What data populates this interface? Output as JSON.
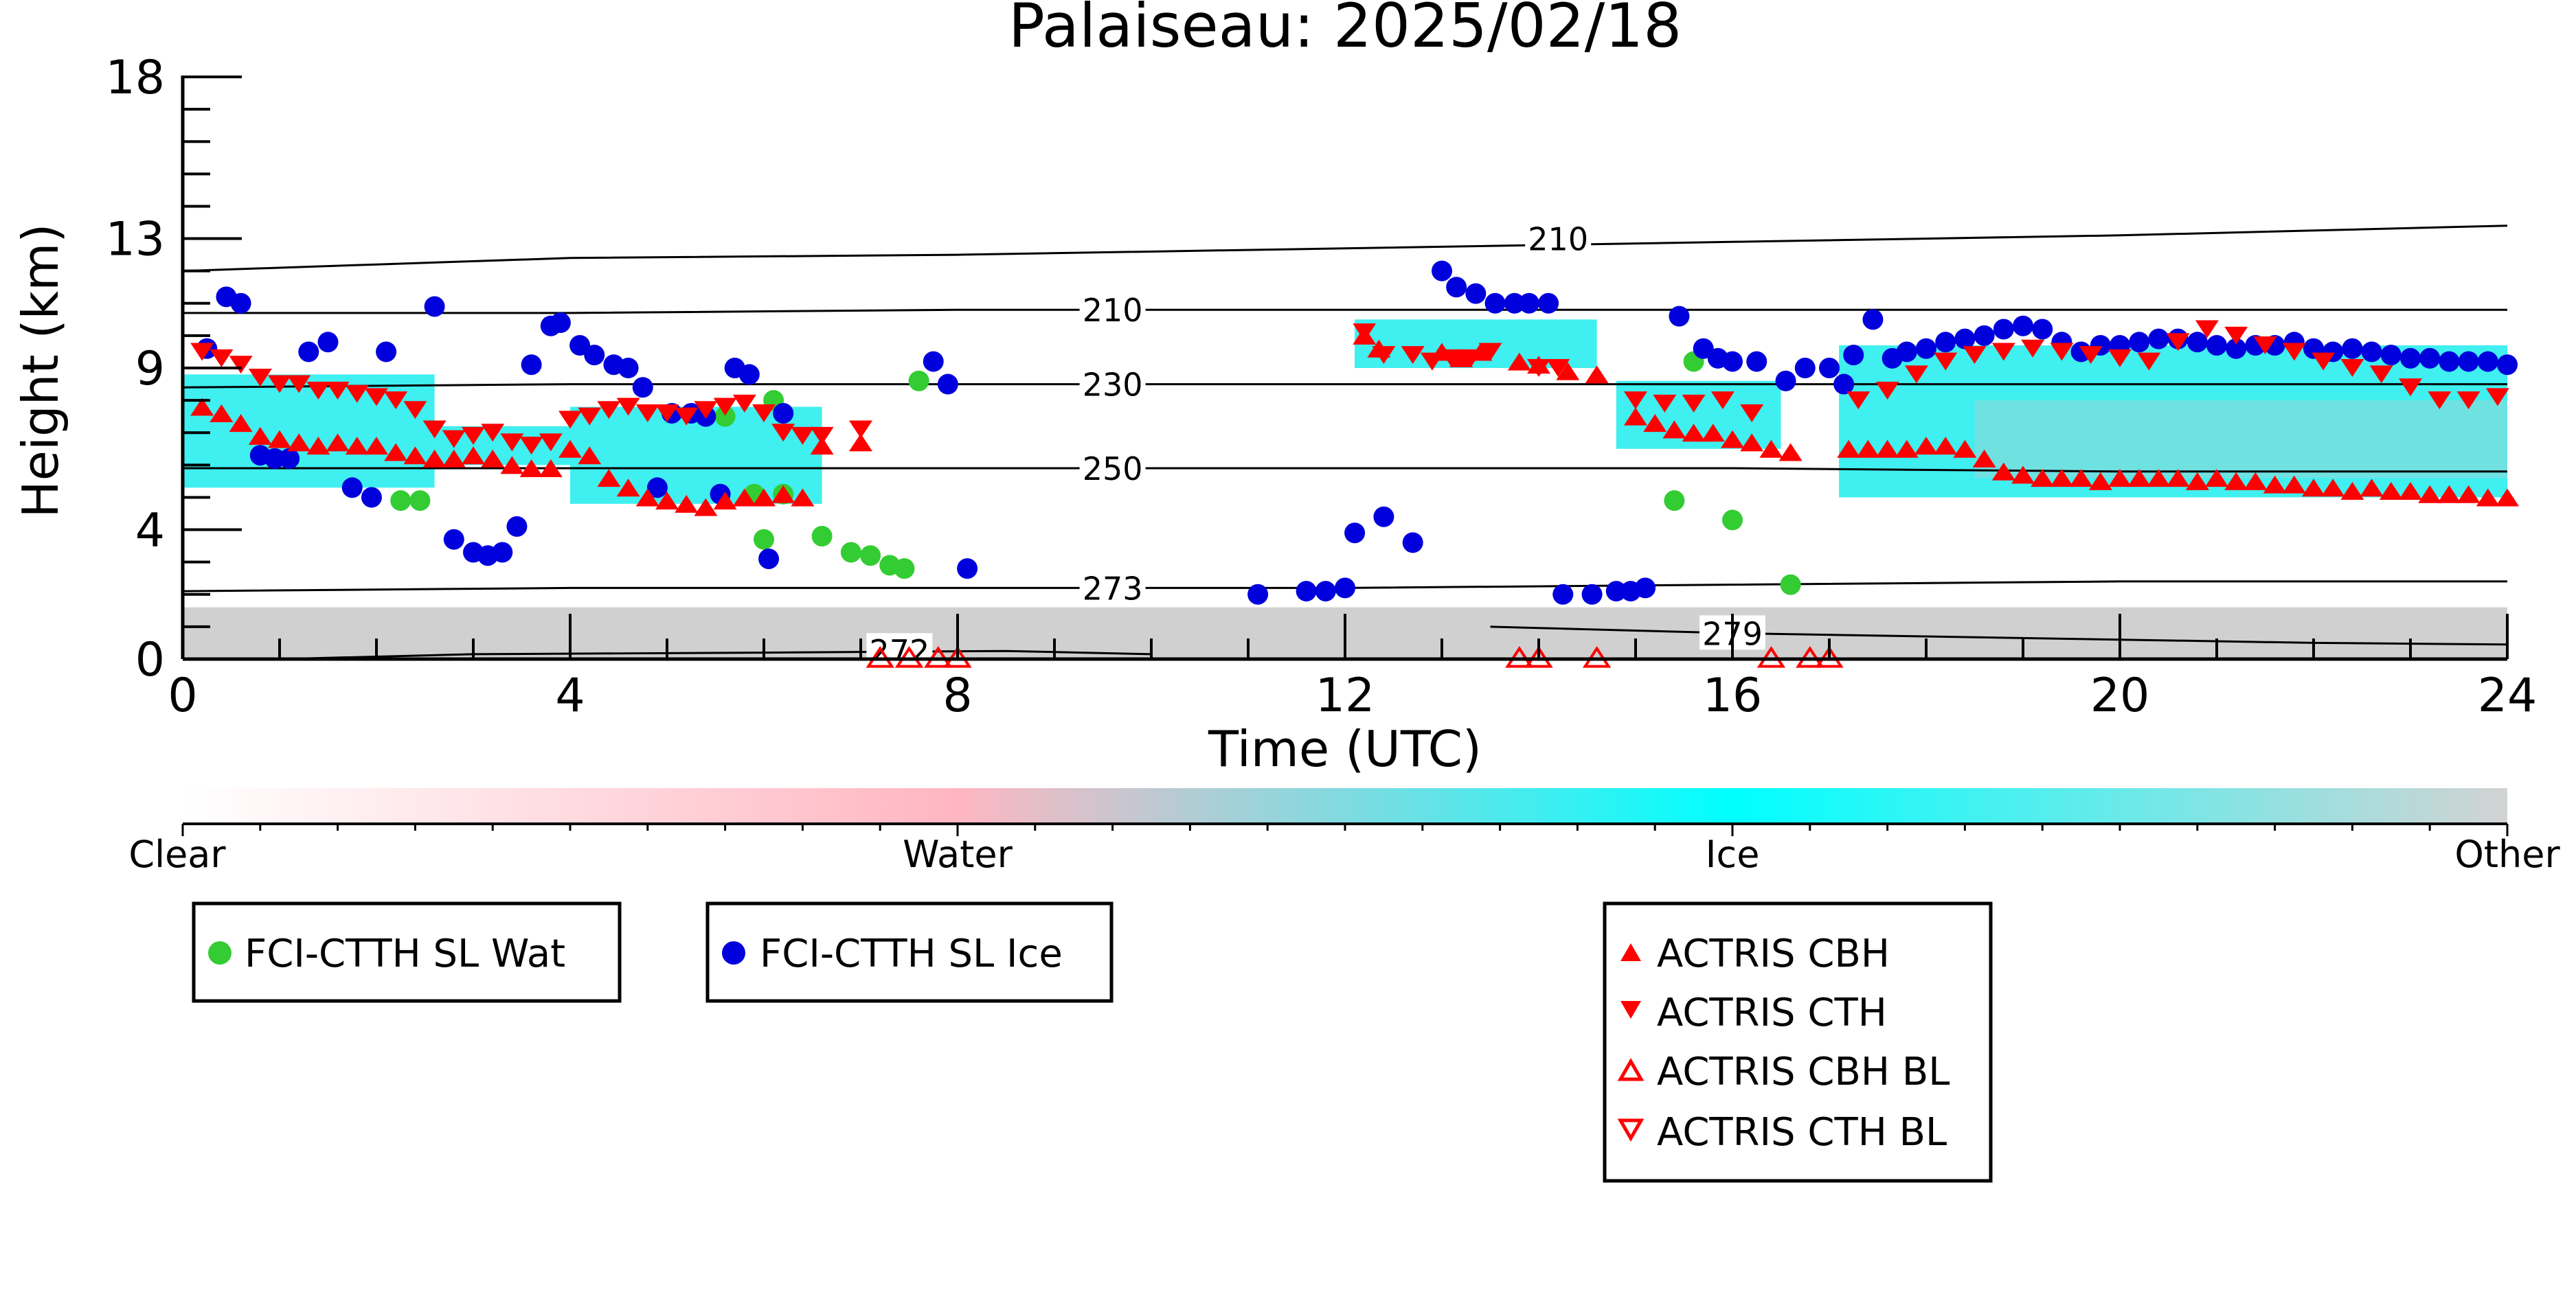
{
  "chart_data": {
    "type": "scatter",
    "title": "Palaiseau: 2025/02/18",
    "xlabel": "Time (UTC)",
    "ylabel": "Height (km)",
    "xlim": [
      0,
      24
    ],
    "ylim": [
      0,
      18
    ],
    "x_ticks": [
      0,
      4,
      8,
      12,
      16,
      20,
      24
    ],
    "y_ticks": [
      0,
      4,
      9,
      13,
      18
    ],
    "grid": false,
    "colors": {
      "wat": "#33cc33",
      "ice": "#0000dd",
      "actris": "#ff0000",
      "cyan": "#00eaea",
      "gray": "#c8c8c8",
      "pink": "#ffb6c1"
    },
    "colorbar": {
      "labels": [
        "Clear",
        "Water",
        "Ice",
        "Other"
      ],
      "stops": [
        "#ffffff",
        "#ffb6c1",
        "#00ffff",
        "#d3d3d3"
      ]
    },
    "legends": [
      [
        "FCI-CTTH SL Wat"
      ],
      [
        "FCI-CTTH SL Ice"
      ],
      [
        "ACTRIS CBH",
        "ACTRIS CTH",
        "ACTRIS CBH BL",
        "ACTRIS CTH BL"
      ]
    ],
    "contours": [
      {
        "label": "210",
        "points": [
          [
            0,
            12.0
          ],
          [
            2,
            12.2
          ],
          [
            4,
            12.4
          ],
          [
            8,
            12.5
          ],
          [
            12,
            12.7
          ],
          [
            16,
            12.9
          ],
          [
            20,
            13.1
          ],
          [
            24,
            13.4
          ]
        ],
        "label_at": [
          14.2,
          13.0
        ]
      },
      {
        "label": "210",
        "points": [
          [
            0,
            10.7
          ],
          [
            4,
            10.7
          ],
          [
            8,
            10.8
          ],
          [
            12,
            10.8
          ],
          [
            16,
            10.8
          ],
          [
            20,
            10.8
          ],
          [
            24,
            10.8
          ]
        ],
        "label_at": [
          9.6,
          10.8
        ]
      },
      {
        "label": "230",
        "points": [
          [
            0,
            8.4
          ],
          [
            4,
            8.5
          ],
          [
            8,
            8.5
          ],
          [
            12,
            8.5
          ],
          [
            16,
            8.5
          ],
          [
            20,
            8.5
          ],
          [
            24,
            8.5
          ]
        ],
        "label_at": [
          9.6,
          8.5
        ]
      },
      {
        "label": "250",
        "points": [
          [
            0,
            5.9
          ],
          [
            4,
            5.9
          ],
          [
            8,
            5.9
          ],
          [
            12,
            5.9
          ],
          [
            16,
            5.9
          ],
          [
            20,
            5.8
          ],
          [
            24,
            5.8
          ]
        ],
        "label_at": [
          9.6,
          5.9
        ]
      },
      {
        "label": "273",
        "points": [
          [
            0,
            2.1
          ],
          [
            4,
            2.2
          ],
          [
            8,
            2.2
          ],
          [
            12,
            2.2
          ],
          [
            16,
            2.3
          ],
          [
            20,
            2.4
          ],
          [
            24,
            2.4
          ]
        ],
        "label_at": [
          9.6,
          2.2
        ]
      },
      {
        "label": "279",
        "points": [
          [
            13.5,
            1.0
          ],
          [
            16,
            0.8
          ],
          [
            18,
            0.7
          ],
          [
            20,
            0.6
          ],
          [
            22,
            0.5
          ],
          [
            24,
            0.45
          ]
        ],
        "label_at": [
          16.0,
          0.8
        ]
      },
      {
        "label": "272",
        "points": [
          [
            1.0,
            0.0
          ],
          [
            3,
            0.15
          ],
          [
            6,
            0.2
          ],
          [
            8.5,
            0.25
          ],
          [
            10,
            0.15
          ]
        ],
        "label_at": [
          7.4,
          0.25
        ]
      }
    ],
    "series": [
      {
        "name": "FCI-CTTH SL Wat",
        "marker": "circle",
        "x": [
          2.25,
          2.45,
          5.6,
          5.9,
          6.0,
          6.1,
          6.2,
          6.6,
          6.9,
          7.1,
          7.3,
          7.45,
          7.6,
          15.4,
          15.6,
          16.0,
          16.6
        ],
        "y": [
          4.9,
          4.9,
          7.5,
          5.1,
          3.7,
          8.0,
          5.1,
          3.8,
          3.3,
          3.2,
          2.9,
          2.8,
          8.6,
          4.9,
          9.2,
          4.3,
          2.3
        ]
      },
      {
        "name": "FCI-CTTH SL Ice",
        "marker": "circle",
        "x": [
          0.25,
          0.45,
          0.6,
          0.8,
          0.95,
          1.1,
          1.3,
          1.5,
          1.75,
          1.95,
          2.1,
          2.6,
          2.8,
          3.0,
          3.15,
          3.3,
          3.45,
          3.6,
          3.8,
          3.9,
          4.1,
          4.25,
          4.45,
          4.6,
          4.75,
          4.9,
          5.05,
          5.25,
          5.4,
          5.55,
          5.7,
          5.85,
          6.05,
          6.2,
          7.75,
          7.9,
          8.1,
          11.1,
          11.6,
          11.8,
          12.0,
          12.1,
          12.4,
          12.7,
          13.0,
          13.15,
          13.35,
          13.55,
          13.75,
          13.9,
          14.1,
          14.25,
          14.55,
          14.8,
          14.95,
          15.1,
          15.45,
          15.7,
          15.85,
          16.0,
          16.25,
          16.55,
          16.75,
          17.0,
          17.15,
          17.25,
          17.45,
          17.65,
          17.8,
          18.0,
          18.2,
          18.4,
          18.6,
          18.8,
          19.0,
          19.2,
          19.4,
          19.6,
          19.8,
          20.0,
          20.2,
          20.4,
          20.6,
          20.8,
          21.0,
          21.2,
          21.4,
          21.6,
          21.8,
          22.0,
          22.2,
          22.4,
          22.6,
          22.8,
          23.0,
          23.2,
          23.4,
          23.6,
          23.8,
          24.0
        ],
        "y": [
          9.6,
          11.2,
          11.0,
          6.3,
          6.2,
          6.2,
          9.5,
          9.8,
          5.3,
          5.0,
          9.5,
          10.9,
          3.7,
          3.3,
          3.2,
          3.3,
          4.1,
          9.1,
          10.3,
          10.4,
          9.7,
          9.4,
          9.1,
          9.0,
          8.4,
          5.3,
          7.6,
          7.6,
          7.5,
          5.1,
          9.0,
          8.8,
          3.1,
          7.6,
          9.2,
          8.5,
          2.8,
          2.0,
          2.1,
          2.1,
          2.2,
          3.9,
          4.4,
          3.6,
          12.0,
          11.5,
          11.3,
          11.0,
          11.0,
          11.0,
          11.0,
          2.0,
          2.0,
          2.1,
          2.1,
          2.2,
          10.6,
          9.6,
          9.3,
          9.2,
          9.2,
          8.6,
          9.0,
          9.0,
          8.5,
          9.4,
          10.5,
          9.3,
          9.5,
          9.6,
          9.8,
          9.9,
          10.0,
          10.2,
          10.3,
          10.2,
          9.8,
          9.5,
          9.7,
          9.7,
          9.8,
          9.9,
          9.9,
          9.8,
          9.7,
          9.6,
          9.7,
          9.7,
          9.8,
          9.6,
          9.5,
          9.6,
          9.5,
          9.4,
          9.3,
          9.3,
          9.2,
          9.2,
          9.2,
          9.1
        ],
        "note_x_extra": []
      },
      {
        "name": "ACTRIS CBH",
        "marker": "triangle-up",
        "x": [
          0.2,
          0.4,
          0.6,
          0.8,
          1.0,
          1.2,
          1.4,
          1.6,
          1.8,
          2.0,
          2.2,
          2.4,
          2.6,
          2.8,
          3.0,
          3.2,
          3.4,
          3.6,
          3.8,
          4.0,
          4.2,
          4.4,
          4.6,
          4.8,
          5.0,
          5.2,
          5.4,
          5.6,
          5.8,
          6.0,
          6.2,
          6.4,
          6.6,
          7.0,
          12.2,
          12.35,
          13.0,
          13.2,
          13.4,
          13.8,
          14.0,
          14.3,
          14.6,
          15.0,
          15.2,
          15.4,
          15.6,
          15.8,
          16.0,
          16.2,
          16.4,
          16.6,
          17.2,
          17.4,
          17.6,
          17.8,
          18.0,
          18.2,
          18.4,
          18.6,
          18.8,
          19.0,
          19.2,
          19.4,
          19.6,
          19.8,
          20.0,
          20.2,
          20.4,
          20.6,
          20.8,
          21.0,
          21.2,
          21.4,
          21.6,
          21.8,
          22.0,
          22.2,
          22.4,
          22.6,
          22.8,
          23.0,
          23.2,
          23.4,
          23.6,
          23.8,
          24.0
        ],
        "y": [
          7.8,
          7.6,
          7.3,
          6.9,
          6.8,
          6.7,
          6.6,
          6.7,
          6.6,
          6.6,
          6.4,
          6.3,
          6.2,
          6.2,
          6.3,
          6.2,
          6.0,
          5.9,
          5.9,
          6.5,
          6.3,
          5.6,
          5.3,
          5.0,
          4.9,
          4.8,
          4.7,
          4.9,
          5.0,
          5.0,
          5.1,
          5.0,
          6.6,
          6.7,
          10.0,
          9.6,
          9.5,
          9.3,
          9.5,
          9.2,
          9.1,
          8.9,
          8.8,
          7.5,
          7.3,
          7.1,
          7.0,
          7.0,
          6.8,
          6.7,
          6.5,
          6.4,
          6.5,
          6.5,
          6.5,
          6.5,
          6.6,
          6.6,
          6.5,
          6.2,
          5.8,
          5.7,
          5.6,
          5.6,
          5.6,
          5.5,
          5.6,
          5.6,
          5.6,
          5.6,
          5.5,
          5.6,
          5.5,
          5.5,
          5.4,
          5.4,
          5.3,
          5.3,
          5.2,
          5.3,
          5.2,
          5.2,
          5.1,
          5.1,
          5.1,
          5.0,
          5.0
        ]
      },
      {
        "name": "ACTRIS CTH",
        "marker": "triangle-down",
        "x": [
          0.2,
          0.4,
          0.6,
          0.8,
          1.0,
          1.2,
          1.4,
          1.6,
          1.8,
          2.0,
          2.2,
          2.4,
          2.6,
          2.8,
          3.0,
          3.2,
          3.4,
          3.6,
          3.8,
          4.0,
          4.2,
          4.4,
          4.6,
          4.8,
          5.0,
          5.2,
          5.4,
          5.6,
          5.8,
          6.0,
          6.2,
          6.4,
          6.6,
          7.0,
          12.2,
          12.4,
          12.7,
          12.9,
          13.1,
          13.3,
          13.5,
          14.0,
          14.2,
          15.0,
          15.3,
          15.6,
          15.9,
          16.2,
          17.3,
          17.6,
          17.9,
          18.2,
          18.5,
          18.8,
          19.1,
          19.4,
          19.7,
          20.0,
          20.3,
          20.6,
          20.9,
          21.2,
          21.5,
          21.8,
          22.1,
          22.4,
          22.7,
          23.0,
          23.3,
          23.6,
          23.9
        ],
        "y": [
          9.5,
          9.3,
          9.1,
          8.7,
          8.5,
          8.5,
          8.3,
          8.3,
          8.2,
          8.1,
          8.0,
          7.7,
          7.1,
          6.8,
          6.9,
          7.0,
          6.7,
          6.6,
          6.7,
          7.4,
          7.5,
          7.7,
          7.8,
          7.6,
          7.6,
          7.5,
          7.7,
          7.8,
          7.9,
          7.6,
          7.0,
          6.9,
          6.9,
          7.1,
          10.1,
          9.4,
          9.4,
          9.2,
          9.3,
          9.3,
          9.5,
          9.0,
          9.0,
          8.0,
          7.9,
          7.9,
          8.0,
          7.6,
          8.0,
          8.3,
          8.8,
          9.2,
          9.4,
          9.5,
          9.6,
          9.5,
          9.4,
          9.3,
          9.2,
          9.8,
          10.2,
          10.0,
          9.7,
          9.5,
          9.2,
          9.0,
          8.8,
          8.4,
          8.0,
          8.0,
          8.1
        ]
      },
      {
        "name": "ACTRIS CBH BL",
        "marker": "triangle-up-open",
        "x": [
          7.2,
          7.5,
          7.8,
          8.0,
          13.8,
          14.0,
          14.6,
          16.4,
          16.8,
          17.0
        ],
        "y": [
          0.05,
          0.05,
          0.05,
          0.05,
          0.05,
          0.05,
          0.05,
          0.05,
          0.05,
          0.05
        ]
      },
      {
        "name": "ACTRIS CTH BL",
        "marker": "triangle-down-open",
        "x": [],
        "y": []
      }
    ]
  }
}
